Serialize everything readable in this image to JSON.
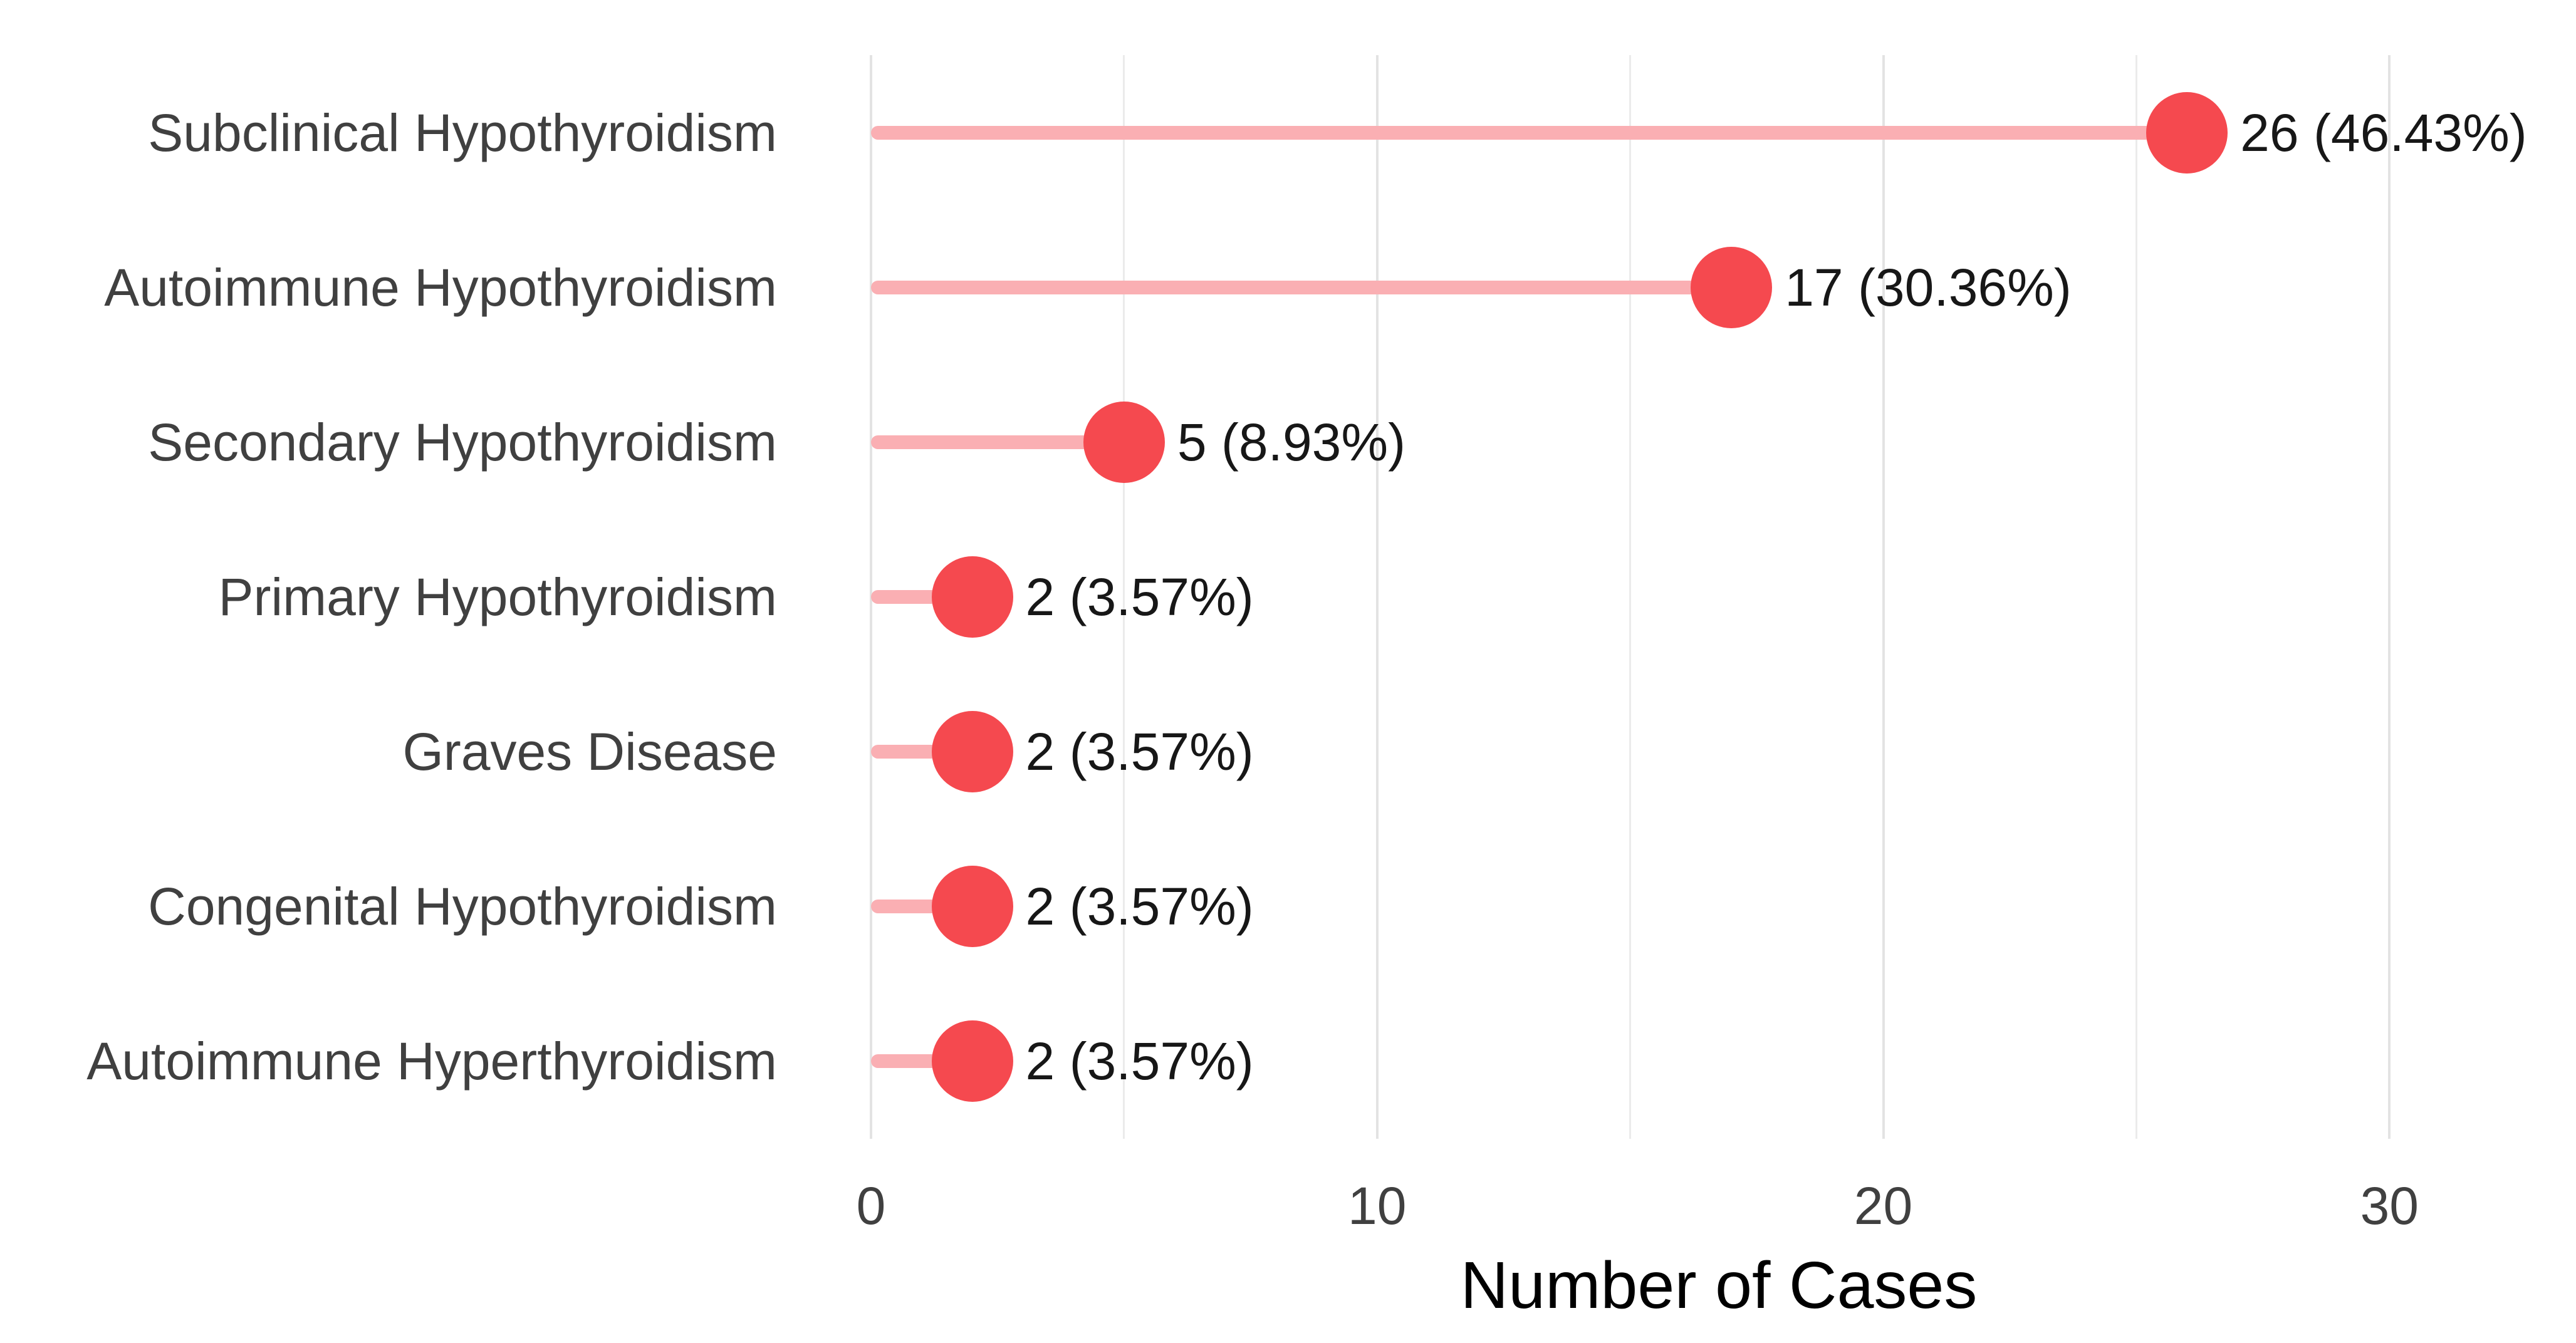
{
  "chart_data": {
    "type": "bar",
    "variant": "lollipop",
    "orientation": "horizontal",
    "title": "",
    "xlabel": "Number of Cases",
    "ylabel": "",
    "xlim": [
      0,
      33.5
    ],
    "x_ticks": [
      0,
      10,
      20,
      30
    ],
    "x_minor_gridlines": [
      5,
      15,
      25
    ],
    "grid": "vertical-only",
    "legend": "none",
    "categories": [
      "Subclinical Hypothyroidism",
      "Autoimmune Hypothyroidism",
      "Secondary Hypothyroidism",
      "Primary Hypothyroidism",
      "Graves Disease",
      "Congenital Hypothyroidism",
      "Autoimmune Hyperthyroidism"
    ],
    "values": [
      26,
      17,
      5,
      2,
      2,
      2,
      2
    ],
    "point_labels": [
      "26 (46.43%)",
      "17 (30.36%)",
      "5 (8.93%)",
      "2 (3.57%)",
      "2 (3.57%)",
      "2 (3.57%)",
      "2 (3.57%)"
    ]
  },
  "style": {
    "background": "#FFFFFF",
    "dot_color": "#F5494F",
    "stem_color": "#FAAFB3",
    "gridline_major_color": "#E3E3E3",
    "gridline_minor_color": "#EBEBEB",
    "axis_text_color": "#404040",
    "value_text_color": "#171717",
    "axis_title_color": "#000000"
  }
}
